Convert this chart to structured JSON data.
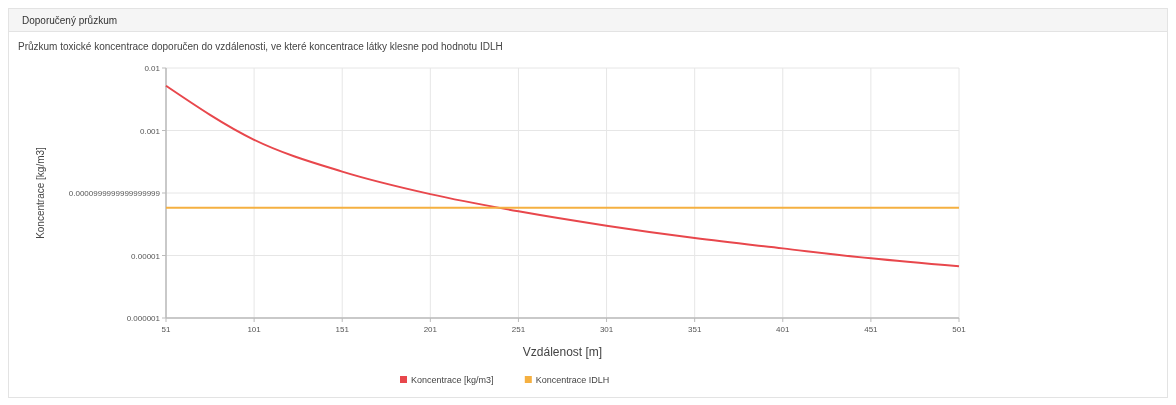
{
  "chart_data": {
    "type": "line",
    "title": "Doporučený průzkum",
    "subtitle": "Průzkum toxické koncentrace doporučen do vzdálenosti, ve které koncentrace látky klesne pod hodnotu IDLH",
    "xlabel": "Vzdálenost [m]",
    "ylabel": "Koncentrace [kg/m3]",
    "x": [
      51,
      101,
      151,
      201,
      251,
      301,
      351,
      401,
      451,
      501
    ],
    "series": [
      {
        "name": "Koncentrace [kg/m3]",
        "color": "#e8474c",
        "values": [
          0.0052,
          0.00071,
          0.00022,
          9.6e-05,
          5.1e-05,
          3e-05,
          1.9e-05,
          1.3e-05,
          9e-06,
          6.7e-06
        ]
      },
      {
        "name": "Koncentrace IDLH",
        "color": "#f5b041",
        "values": [
          5.8e-05,
          5.8e-05,
          5.8e-05,
          5.8e-05,
          5.8e-05,
          5.8e-05,
          5.8e-05,
          5.8e-05,
          5.8e-05,
          5.8e-05
        ]
      }
    ],
    "xlim": [
      51,
      501
    ],
    "xticks": [
      51,
      101,
      151,
      201,
      251,
      301,
      351,
      401,
      451,
      501
    ],
    "ylim": [
      1e-06,
      0.01
    ],
    "yticks": [
      {
        "value": 1e-06,
        "label": "0.000001"
      },
      {
        "value": 1e-05,
        "label": "0.00001"
      },
      {
        "value": 0.0001,
        "label": "0.0000999999999999999"
      },
      0.001,
      0.01
    ],
    "log": "y",
    "grid": true,
    "legend": "bottom",
    "marker": "none",
    "line_style": "solid"
  }
}
